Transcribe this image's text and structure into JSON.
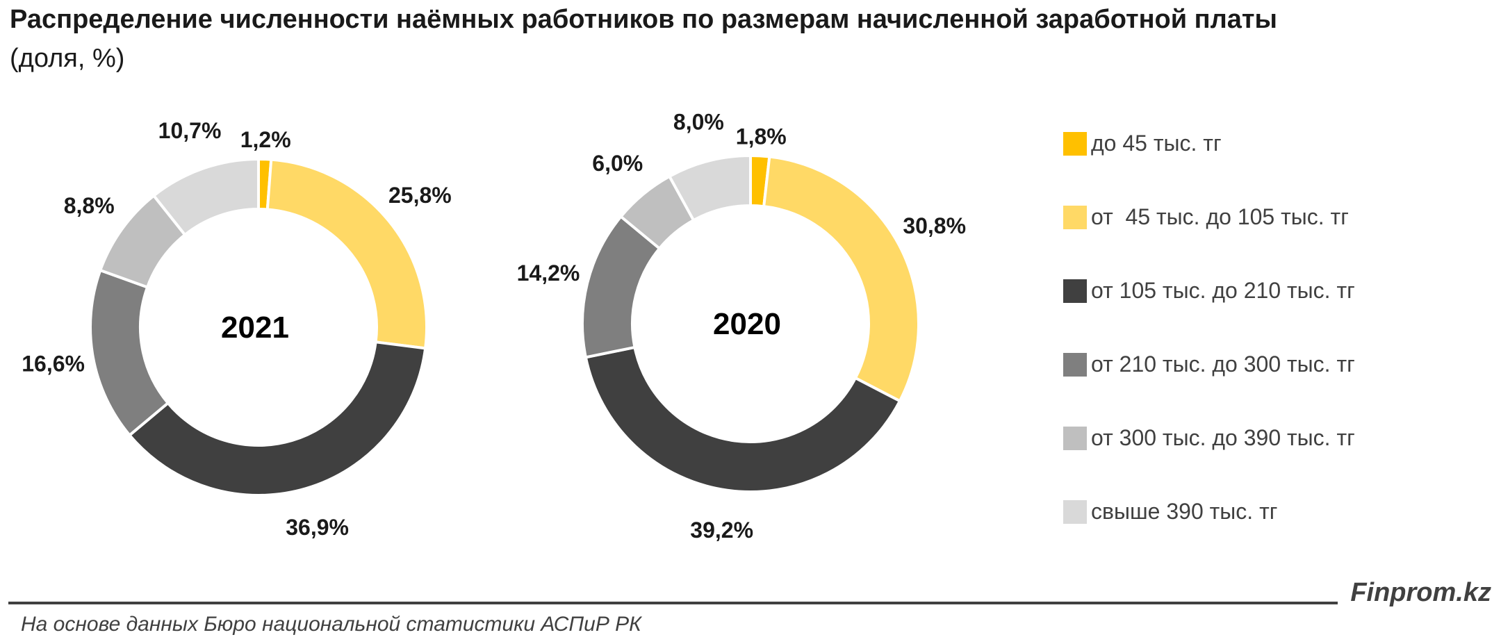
{
  "title": "Распределение численности наёмных работников по размерам начисленной заработной платы",
  "subtitle": "(доля, %)",
  "colors": [
    "#FFC000",
    "#FFD966",
    "#404040",
    "#7F7F7F",
    "#BFBFBF",
    "#D9D9D9"
  ],
  "chart_data": [
    {
      "type": "pie",
      "variant": "donut",
      "center_label": "2021",
      "categories": [
        "до 45 тыс. тг",
        "от  45 тыс. до 105 тыс. тг",
        "от 105 тыс. до 210 тыс. тг",
        "от 210 тыс. до 300 тыс. тг",
        "от 300 тыс. до 390 тыс. тг",
        "свыше 390 тыс. тг"
      ],
      "values": [
        1.2,
        25.8,
        36.9,
        16.6,
        8.8,
        10.7
      ],
      "value_labels": [
        "1,2%",
        "25,8%",
        "36,9%",
        "16,6%",
        "8,8%",
        "10,7%"
      ],
      "legend_position": "right"
    },
    {
      "type": "pie",
      "variant": "donut",
      "center_label": "2020",
      "categories": [
        "до 45 тыс. тг",
        "от  45 тыс. до 105 тыс. тг",
        "от 105 тыс. до 210 тыс. тг",
        "от 210 тыс. до 300 тыс. тг",
        "от 300 тыс. до 390 тыс. тг",
        "свыше 390 тыс. тг"
      ],
      "values": [
        1.8,
        30.8,
        39.2,
        14.2,
        6.0,
        8.0
      ],
      "value_labels": [
        "1,8%",
        "30,8%",
        "39,2%",
        "14,2%",
        "6,0%",
        "8,0%"
      ],
      "legend_position": "right"
    }
  ],
  "legend": [
    "до 45 тыс. тг",
    "от  45 тыс. до 105 тыс. тг",
    "от 105 тыс. до 210 тыс. тг",
    "от 210 тыс. до 300 тыс. тг",
    "от 300 тыс. до 390 тыс. тг",
    "свыше 390 тыс. тг"
  ],
  "brand": "Finprom.kz",
  "source": "На основе данных Бюро национальной статистики АСПиР РК"
}
